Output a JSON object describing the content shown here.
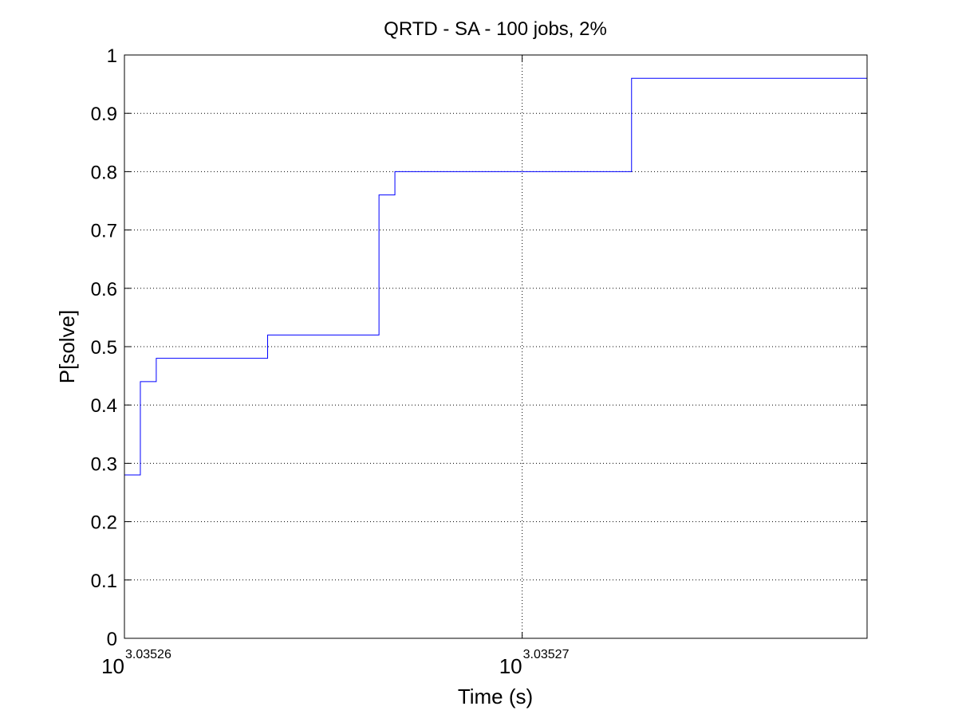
{
  "chart_data": {
    "type": "line",
    "title": "QRTD - SA - 100 jobs, 2%",
    "xlabel": "Time (s)",
    "ylabel": "P[solve]",
    "x_scale": "log",
    "x_log10_range": [
      3.03526,
      3.035278671
    ],
    "x_ticks": [
      {
        "base": "10",
        "exponent": "3.03526",
        "log10": 3.03526
      },
      {
        "base": "10",
        "exponent": "3.03527",
        "log10": 3.03527
      }
    ],
    "ylim": [
      0,
      1
    ],
    "y_ticks": [
      {
        "value": 0,
        "label": "0"
      },
      {
        "value": 0.1,
        "label": "0.1"
      },
      {
        "value": 0.2,
        "label": "0.2"
      },
      {
        "value": 0.3,
        "label": "0.3"
      },
      {
        "value": 0.4,
        "label": "0.4"
      },
      {
        "value": 0.5,
        "label": "0.5"
      },
      {
        "value": 0.6,
        "label": "0.6"
      },
      {
        "value": 0.7,
        "label": "0.7"
      },
      {
        "value": 0.8,
        "label": "0.8"
      },
      {
        "value": 0.9,
        "label": "0.9"
      },
      {
        "value": 1,
        "label": "1"
      }
    ],
    "grid": true,
    "grid_style": "dotted",
    "series": [
      {
        "style": "step",
        "color": "#0000ff",
        "points": [
          {
            "log10_x": 3.03526,
            "y": 0.28
          },
          {
            "log10_x": 3.0352604,
            "y": 0.44
          },
          {
            "log10_x": 3.0352608,
            "y": 0.48
          },
          {
            "log10_x": 3.0352636,
            "y": 0.52
          },
          {
            "log10_x": 3.0352664,
            "y": 0.76
          },
          {
            "log10_x": 3.0352668,
            "y": 0.8
          },
          {
            "log10_x": 3.03527275,
            "y": 0.96
          },
          {
            "log10_x": 3.035278671,
            "y": 0.96
          }
        ]
      }
    ]
  }
}
